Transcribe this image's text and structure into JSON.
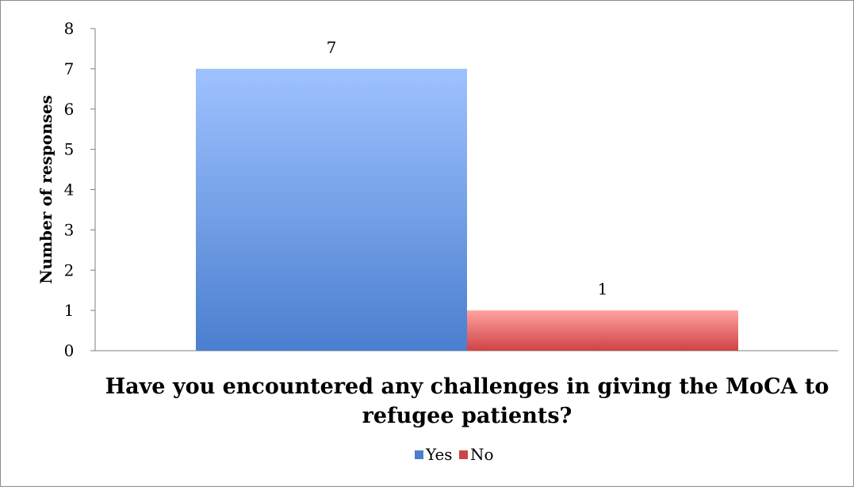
{
  "chart_data": {
    "type": "bar",
    "xlabel": "Have you encountered any challenges in giving the MoCA to refugee patients?",
    "ylabel": "Number of responses",
    "ylim": [
      0,
      8
    ],
    "yticks": [
      0,
      1,
      2,
      3,
      4,
      5,
      6,
      7,
      8
    ],
    "grid": false,
    "legend": "bottom",
    "series": [
      {
        "name": "Yes",
        "values": [
          7
        ],
        "color": "#4a7fcf",
        "color_light": "#9fc2ff"
      },
      {
        "name": "No",
        "values": [
          1
        ],
        "color": "#cf4245",
        "color_light": "#ffa3a0"
      }
    ]
  }
}
